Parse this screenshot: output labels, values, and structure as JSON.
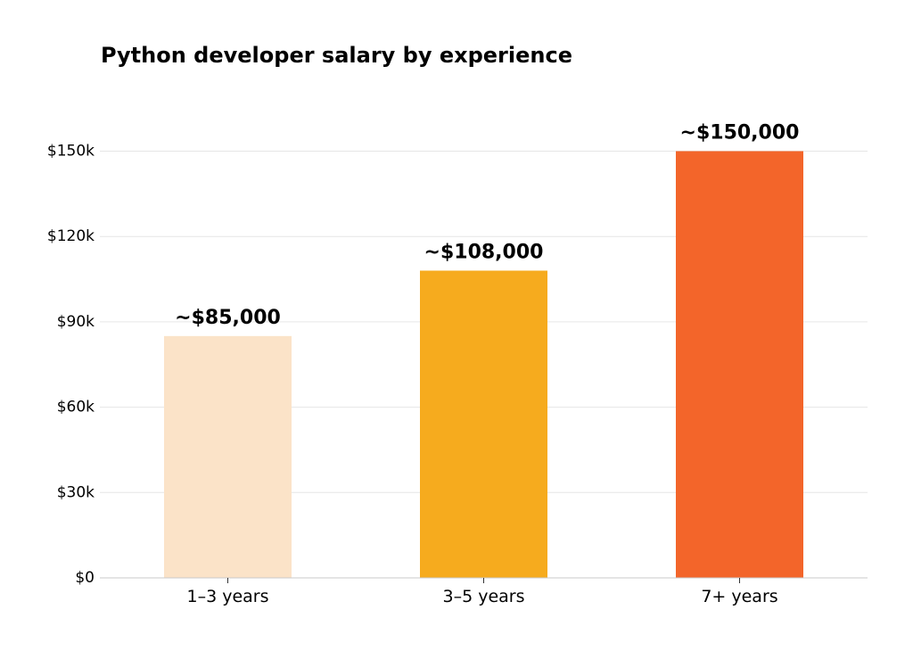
{
  "chart_data": {
    "type": "bar",
    "title": "Python developer salary by experience",
    "xlabel": "",
    "ylabel": "",
    "categories": [
      "1–3 years",
      "3–5 years",
      "7+ years"
    ],
    "values": [
      85000,
      108000,
      150000
    ],
    "data_labels": [
      "~$85,000",
      "~$108,000",
      "~$150,000"
    ],
    "colors": [
      "#fbe3c8",
      "#f6ab1e",
      "#f3652a"
    ],
    "ylim": [
      0,
      150000
    ],
    "yticks": [
      0,
      30000,
      60000,
      90000,
      120000,
      150000
    ],
    "ytick_labels": [
      "$0",
      "$30k",
      "$60k",
      "$90k",
      "$120k",
      "$150k"
    ],
    "grid": true,
    "legend": "none"
  }
}
